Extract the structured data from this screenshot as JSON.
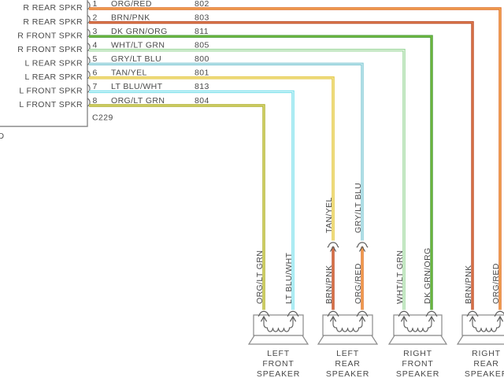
{
  "colors": {
    "background": "#ffffff",
    "outline": "#8a8a8a",
    "symbol": "#5a5a5a",
    "text": "#4a4a4a"
  },
  "radio_connector": {
    "label": "C229",
    "clipped_left_text": "D",
    "pins": [
      {
        "number": "1",
        "left_label": "R REAR SPKR",
        "wire": "ORG/RED",
        "circuit": "802"
      },
      {
        "number": "2",
        "left_label": "R REAR SPKR",
        "wire": "BRN/PNK",
        "circuit": "803"
      },
      {
        "number": "3",
        "left_label": "R FRONT SPKR",
        "wire": "DK GRN/ORG",
        "circuit": "811"
      },
      {
        "number": "4",
        "left_label": "R FRONT SPKR",
        "wire": "WHT/LT GRN",
        "circuit": "805"
      },
      {
        "number": "5",
        "left_label": "L REAR SPKR",
        "wire": "GRY/LT BLU",
        "circuit": "800"
      },
      {
        "number": "6",
        "left_label": "L REAR SPKR",
        "wire": "TAN/YEL",
        "circuit": "801"
      },
      {
        "number": "7",
        "left_label": "L FRONT SPKR",
        "wire": "LT BLU/WHT",
        "circuit": "813"
      },
      {
        "number": "8",
        "left_label": "L FRONT SPKR",
        "wire": "ORG/LT GRN",
        "circuit": "804"
      }
    ]
  },
  "wire_palette": {
    "ORG/RED": {
      "main": "#DE6A26",
      "core": "#F6B45F"
    },
    "BRN/PNK": {
      "main": "#BC4B2C",
      "core": "#E08352"
    },
    "DK GRN/ORG": {
      "main": "#449A38",
      "core": "#7FC23F"
    },
    "WHT/LT GRN": {
      "main": "#96D596",
      "core": "#E4F4E2"
    },
    "GRY/LT BLU": {
      "main": "#84C9D4",
      "core": "#C6E9EE"
    },
    "TAN/YEL": {
      "main": "#E2C335",
      "core": "#F4E8A2"
    },
    "LT BLU/WHT": {
      "main": "#70DDE9",
      "core": "#D6F6FA"
    },
    "ORG/LT GRN": {
      "main": "#AEAE2A",
      "core": "#DCDC7E"
    }
  },
  "routes": [
    {
      "pin": "1",
      "destination": "right-rear",
      "terminal": "right",
      "splice_to": null
    },
    {
      "pin": "2",
      "destination": "right-rear",
      "terminal": "left",
      "splice_to": null
    },
    {
      "pin": "3",
      "destination": "right-front",
      "terminal": "right",
      "splice_to": null
    },
    {
      "pin": "4",
      "destination": "right-front",
      "terminal": "left",
      "splice_to": null
    },
    {
      "pin": "5",
      "destination": "left-rear",
      "terminal": "right",
      "splice_to": "ORG/RED"
    },
    {
      "pin": "6",
      "destination": "left-rear",
      "terminal": "left",
      "splice_to": "BRN/PNK"
    },
    {
      "pin": "7",
      "destination": "left-front",
      "terminal": "right",
      "splice_to": null
    },
    {
      "pin": "8",
      "destination": "left-front",
      "terminal": "left",
      "splice_to": null
    }
  ],
  "speakers": [
    {
      "id": "left-front",
      "label_lines": [
        "LEFT",
        "FRONT",
        "SPEAKER"
      ]
    },
    {
      "id": "left-rear",
      "label_lines": [
        "LEFT",
        "REAR",
        "SPEAKER"
      ]
    },
    {
      "id": "right-front",
      "label_lines": [
        "RIGHT",
        "FRONT",
        "SPEAKER"
      ]
    },
    {
      "id": "right-rear",
      "label_lines": [
        "RIGHT",
        "REAR",
        "SPEAKER"
      ]
    }
  ]
}
